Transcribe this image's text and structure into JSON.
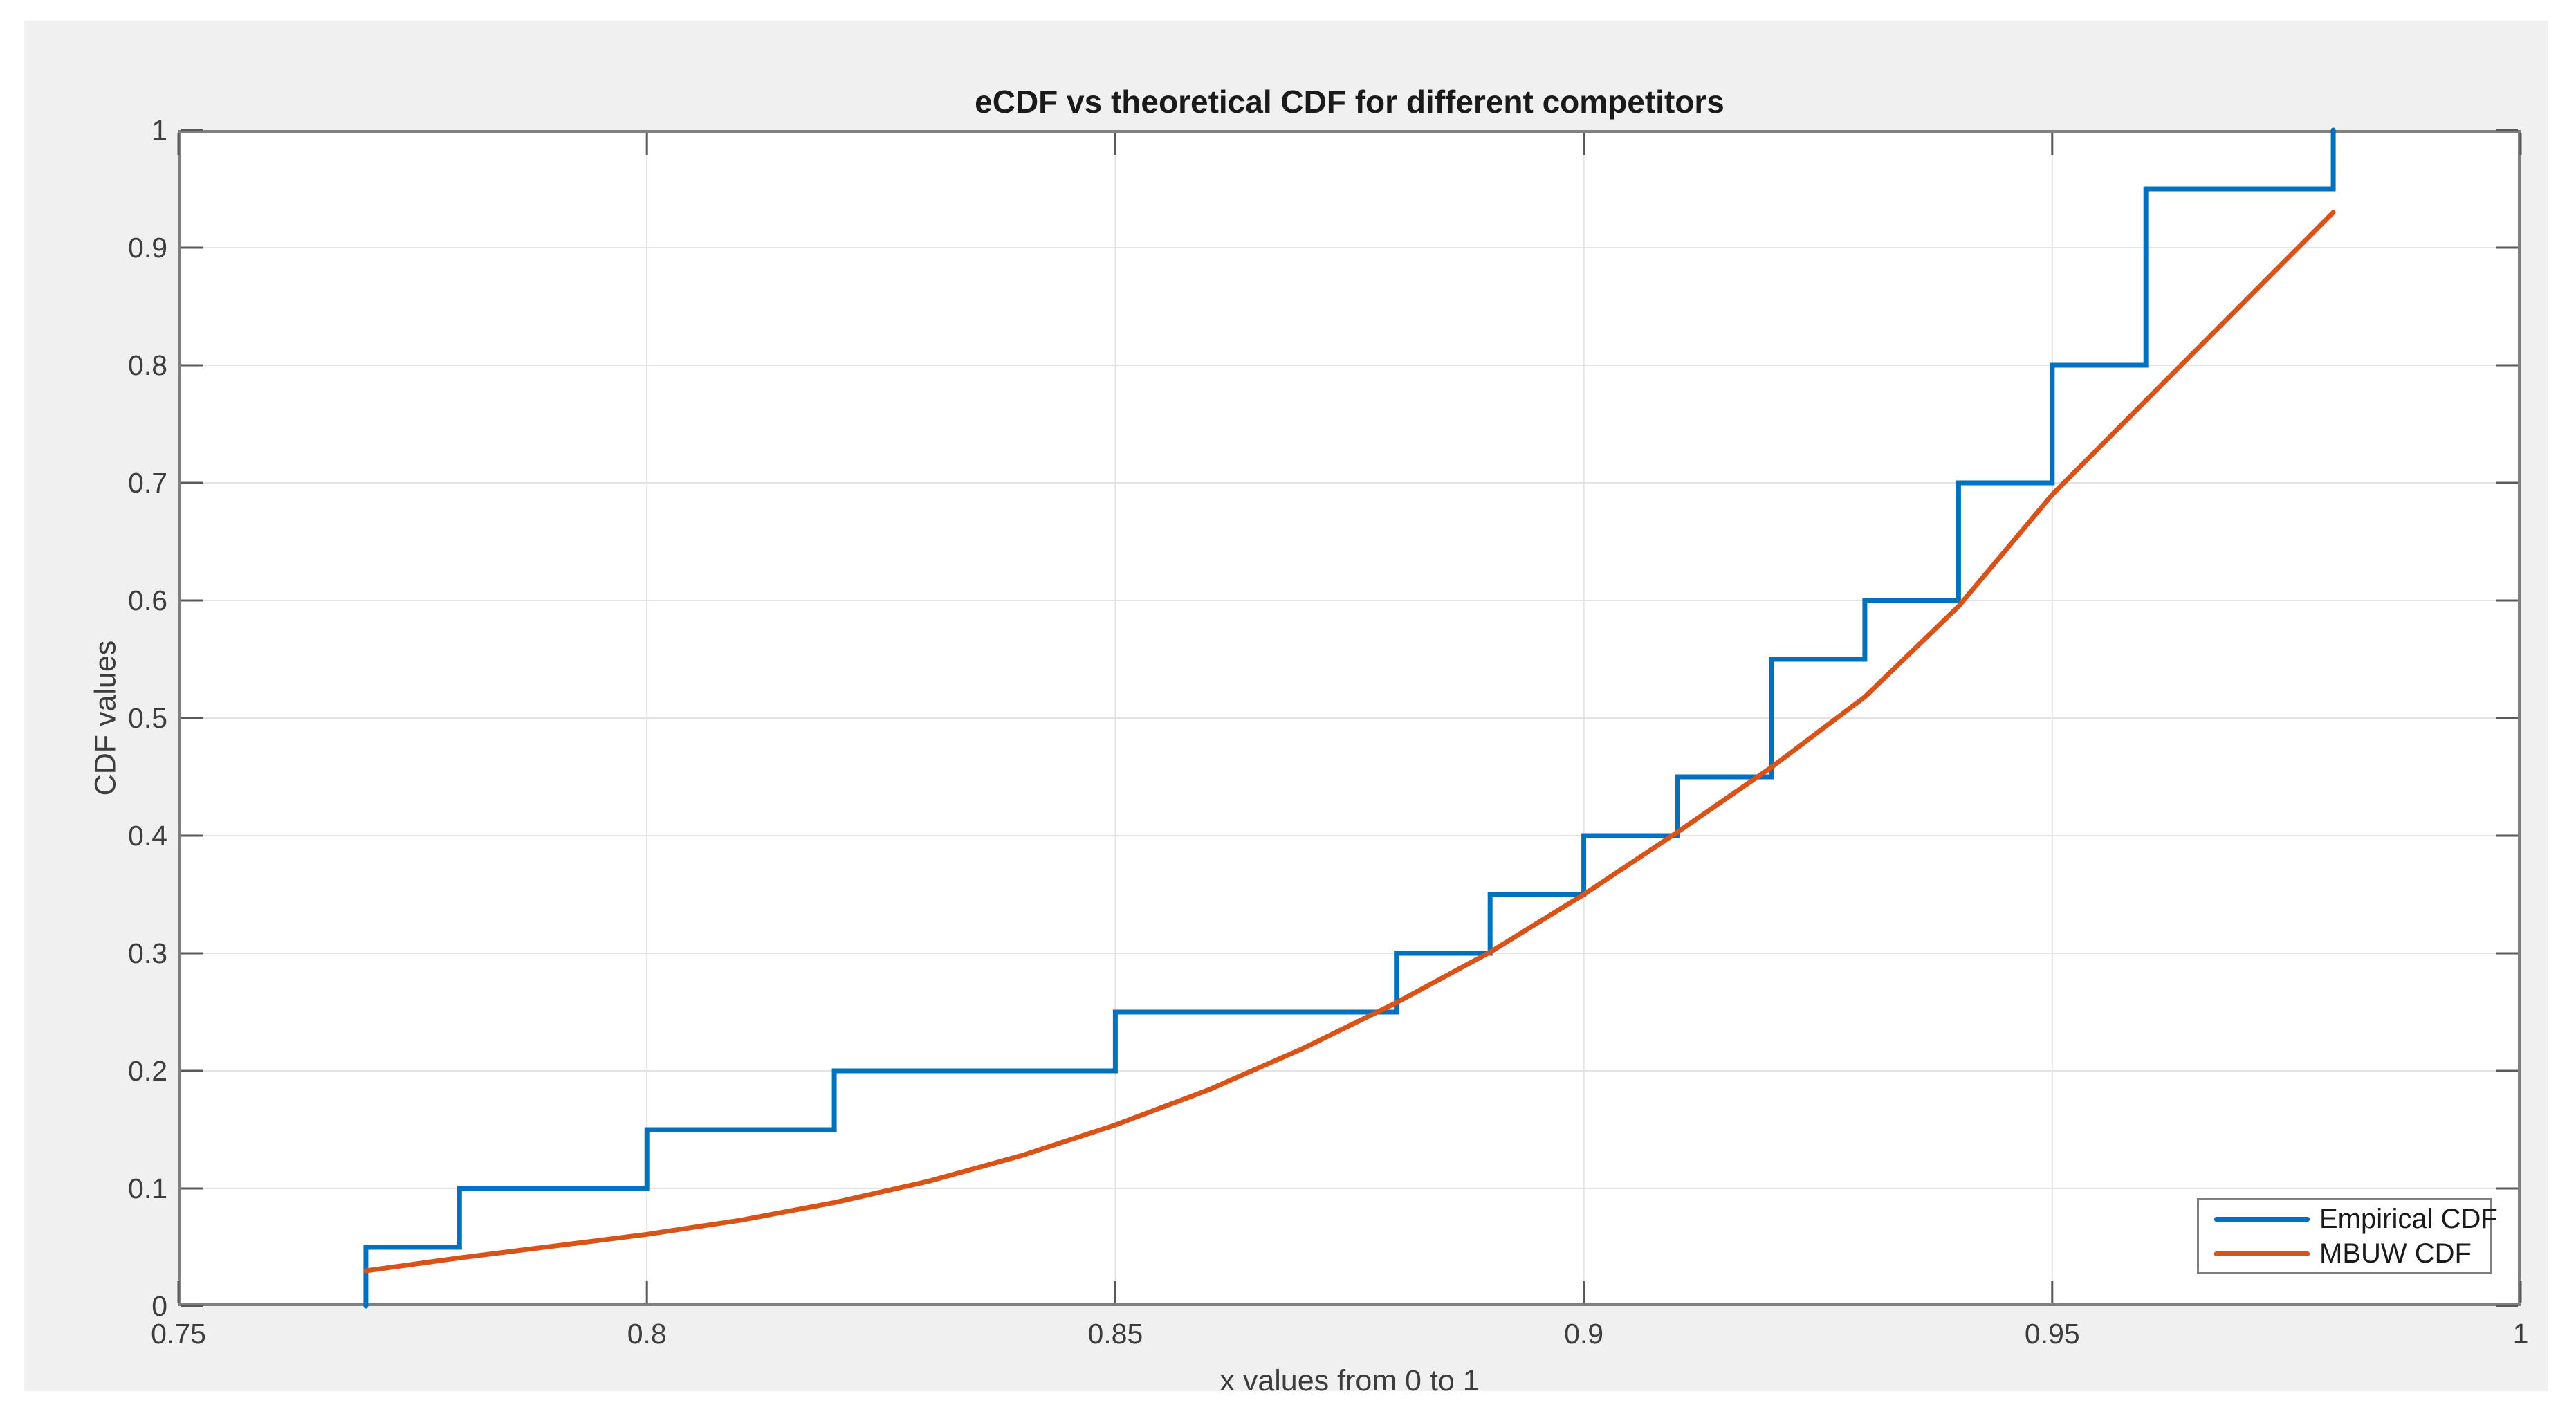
{
  "figure": {
    "title": "eCDF vs theoretical CDF for different competitors",
    "xlabel": "x values from 0 to 1",
    "ylabel": "CDF values"
  },
  "legend": {
    "items": [
      {
        "label": "Empirical CDF",
        "color": "#0072BD"
      },
      {
        "label": "MBUW CDF",
        "color": "#D95319"
      }
    ]
  },
  "colors": {
    "figure_bg": "#F0F0F0",
    "plot_bg": "#FFFFFF",
    "axis_border": "#7F7F7F",
    "grid": "#E3E3E3",
    "tick_mark": "#595959",
    "tick_text": "#3D3D3D",
    "title_text": "#1A1A1A",
    "empirical_line": "#0072BD",
    "mbuw_line": "#D95319"
  },
  "chart_data": {
    "type": "line",
    "title": "eCDF vs theoretical CDF for different competitors",
    "xlabel": "x values from 0 to 1",
    "ylabel": "CDF values",
    "xlim": [
      0.75,
      1.0
    ],
    "ylim": [
      0,
      1
    ],
    "grid": true,
    "legend_position": "bottom-right",
    "x_ticks": [
      {
        "v": 0.75,
        "label": "0.75"
      },
      {
        "v": 0.8,
        "label": "0.8"
      },
      {
        "v": 0.85,
        "label": "0.85"
      },
      {
        "v": 0.9,
        "label": "0.9"
      },
      {
        "v": 0.95,
        "label": "0.95"
      },
      {
        "v": 1.0,
        "label": "1"
      }
    ],
    "y_ticks": [
      {
        "v": 0,
        "label": "0"
      },
      {
        "v": 0.1,
        "label": "0.1"
      },
      {
        "v": 0.2,
        "label": "0.2"
      },
      {
        "v": 0.3,
        "label": "0.3"
      },
      {
        "v": 0.4,
        "label": "0.4"
      },
      {
        "v": 0.5,
        "label": "0.5"
      },
      {
        "v": 0.6,
        "label": "0.6"
      },
      {
        "v": 0.7,
        "label": "0.7"
      },
      {
        "v": 0.8,
        "label": "0.8"
      },
      {
        "v": 0.9,
        "label": "0.9"
      },
      {
        "v": 1,
        "label": "1"
      }
    ],
    "series": [
      {
        "name": "Empirical CDF",
        "type": "step",
        "color": "#0072BD",
        "data_x": [
          0.77,
          0.78,
          0.8,
          0.82,
          0.85,
          0.88,
          0.89,
          0.9,
          0.91,
          0.92,
          0.92,
          0.93,
          0.94,
          0.94,
          0.95,
          0.95,
          0.96,
          0.96,
          0.96,
          0.98
        ],
        "points": [
          [
            0.77,
            0
          ],
          [
            0.77,
            0.05
          ],
          [
            0.78,
            0.05
          ],
          [
            0.78,
            0.1
          ],
          [
            0.8,
            0.1
          ],
          [
            0.8,
            0.15
          ],
          [
            0.82,
            0.15
          ],
          [
            0.82,
            0.2
          ],
          [
            0.85,
            0.2
          ],
          [
            0.85,
            0.25
          ],
          [
            0.88,
            0.25
          ],
          [
            0.88,
            0.3
          ],
          [
            0.89,
            0.3
          ],
          [
            0.89,
            0.35
          ],
          [
            0.9,
            0.35
          ],
          [
            0.9,
            0.4
          ],
          [
            0.91,
            0.4
          ],
          [
            0.91,
            0.45
          ],
          [
            0.92,
            0.45
          ],
          [
            0.92,
            0.55
          ],
          [
            0.93,
            0.55
          ],
          [
            0.93,
            0.6
          ],
          [
            0.94,
            0.6
          ],
          [
            0.94,
            0.7
          ],
          [
            0.95,
            0.7
          ],
          [
            0.95,
            0.8
          ],
          [
            0.96,
            0.8
          ],
          [
            0.96,
            0.95
          ],
          [
            0.98,
            0.95
          ],
          [
            0.98,
            1.0
          ]
        ]
      },
      {
        "name": "MBUW CDF",
        "type": "line",
        "color": "#D95319",
        "points": [
          [
            0.77,
            0.03
          ],
          [
            0.78,
            0.041
          ],
          [
            0.79,
            0.051
          ],
          [
            0.8,
            0.061
          ],
          [
            0.81,
            0.073
          ],
          [
            0.82,
            0.088
          ],
          [
            0.83,
            0.106
          ],
          [
            0.84,
            0.128
          ],
          [
            0.85,
            0.154
          ],
          [
            0.86,
            0.184
          ],
          [
            0.87,
            0.219
          ],
          [
            0.88,
            0.258
          ],
          [
            0.89,
            0.301
          ],
          [
            0.9,
            0.35
          ],
          [
            0.91,
            0.403
          ],
          [
            0.92,
            0.458
          ],
          [
            0.93,
            0.518
          ],
          [
            0.94,
            0.595
          ],
          [
            0.95,
            0.69
          ],
          [
            0.96,
            0.77
          ],
          [
            0.97,
            0.85
          ],
          [
            0.98,
            0.93
          ]
        ]
      }
    ]
  }
}
